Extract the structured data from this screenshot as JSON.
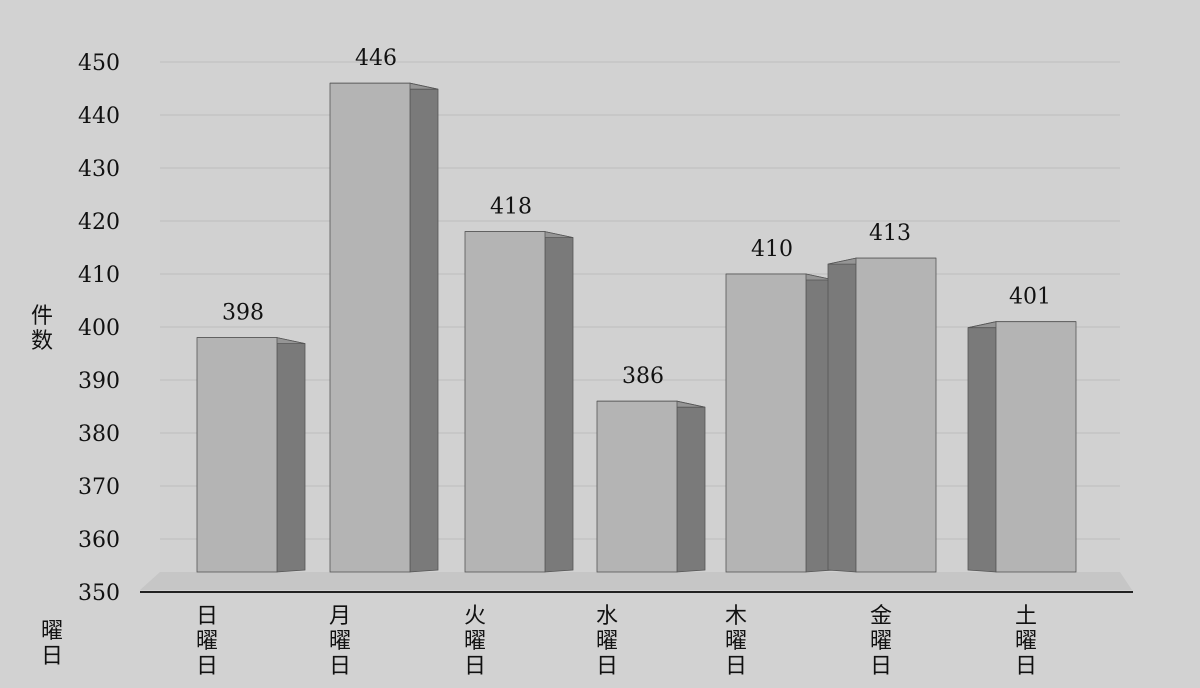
{
  "chart_data": {
    "type": "bar",
    "title": "",
    "ylabel": "件数",
    "xlabel": "曜日",
    "categories": [
      "日曜日",
      "月曜日",
      "火曜日",
      "水曜日",
      "木曜日",
      "金曜日",
      "土曜日"
    ],
    "values": [
      398,
      446,
      418,
      386,
      410,
      413,
      401
    ],
    "ylim": [
      350,
      450
    ],
    "yticks": [
      350,
      360,
      370,
      380,
      390,
      400,
      410,
      420,
      430,
      440,
      450
    ],
    "data_labels": true,
    "grid": true,
    "legend": "none",
    "style": "3d",
    "colors": {
      "background": "#d2d2d2",
      "bar_front": "#b4b4b4",
      "bar_side": "#7a7a7a",
      "bar_top": "#959595",
      "floor": "#c6c6c6",
      "axis": "#222222",
      "grid": "#bdbdbd"
    }
  }
}
